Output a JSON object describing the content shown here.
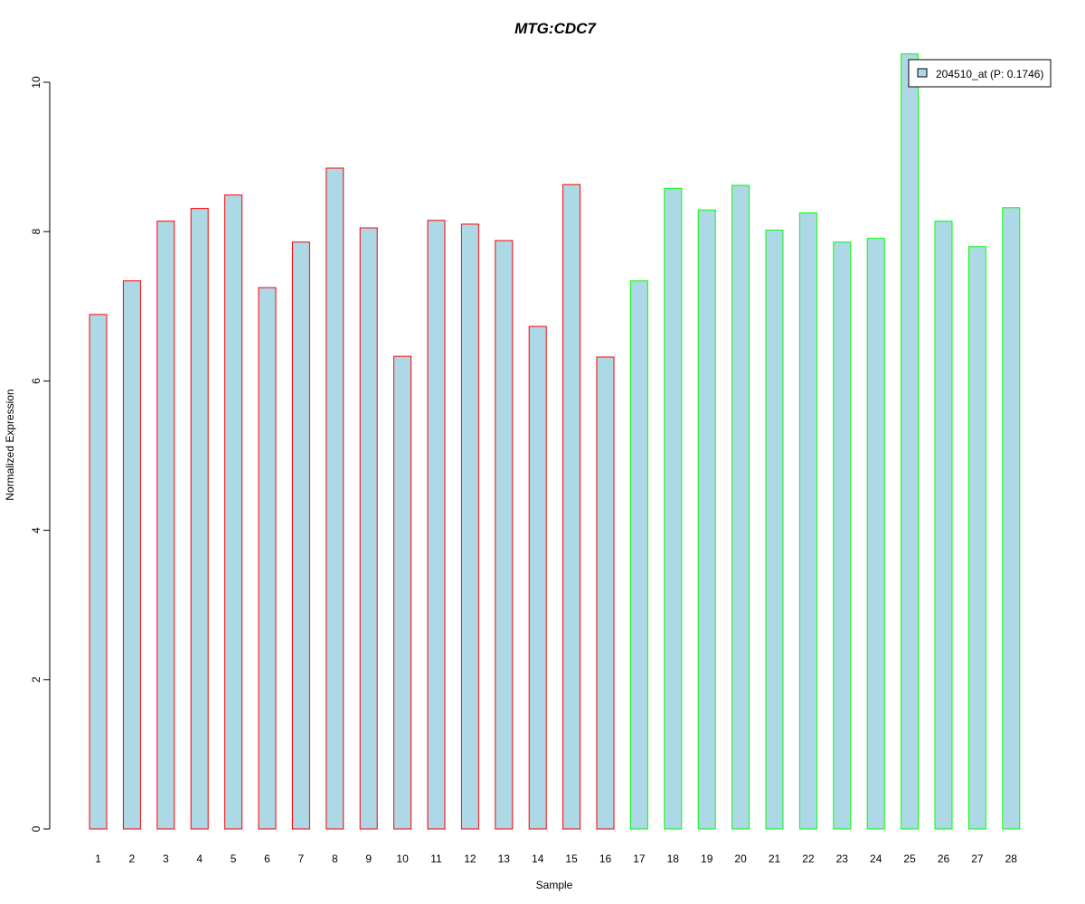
{
  "chart_data": {
    "type": "bar",
    "title": "MTG:CDC7",
    "xlabel": "Sample",
    "ylabel": "Normalized Expression",
    "ylim": [
      0,
      10
    ],
    "yticks": [
      "0",
      "2",
      "4",
      "6",
      "8",
      "10"
    ],
    "grid": false,
    "categories": [
      "1",
      "2",
      "3",
      "4",
      "5",
      "6",
      "7",
      "8",
      "9",
      "10",
      "11",
      "12",
      "13",
      "14",
      "15",
      "16",
      "17",
      "18",
      "19",
      "20",
      "21",
      "22",
      "23",
      "24",
      "25",
      "26",
      "27",
      "28"
    ],
    "series": [
      {
        "name": "204510_at (P: 0.1746)",
        "values": [
          6.89,
          7.34,
          8.14,
          8.31,
          8.49,
          7.25,
          7.86,
          8.85,
          8.05,
          6.33,
          8.15,
          8.1,
          7.88,
          6.73,
          8.63,
          6.32,
          7.34,
          8.58,
          8.29,
          8.62,
          8.02,
          8.25,
          7.86,
          7.91,
          10.38,
          8.14,
          7.8,
          8.32
        ]
      }
    ],
    "groups": [
      {
        "samples": [
          1,
          16
        ],
        "border_color": "#ff0000"
      },
      {
        "samples": [
          17,
          28
        ],
        "border_color": "#00ff00"
      }
    ],
    "bar_fill": "#add8e6",
    "title_color": "#0000cc",
    "legend": {
      "position": "top-right",
      "label": "204510_at (P: 0.1746)"
    }
  }
}
